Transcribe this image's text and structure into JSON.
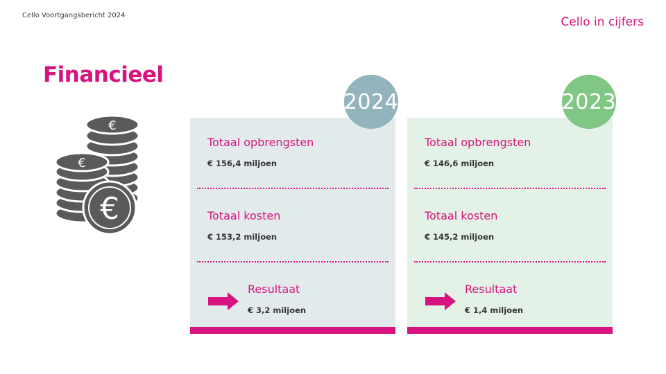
{
  "header": {
    "doc_label": "Cello Voortgangsbericht 2024",
    "section_label": "Cello in cijfers"
  },
  "page": {
    "title": "Financieel",
    "icon": "euro-coins-icon"
  },
  "colors": {
    "accent": "#d6137e",
    "badge_2024": "#93b4bd",
    "badge_2023": "#80c684",
    "card_2024": "#e2eaec",
    "card_2023": "#e3f1e6",
    "coin": "#5a5a5a"
  },
  "years": [
    {
      "year": "2024",
      "revenue_label": "Totaal opbrengsten",
      "revenue_value": "€ 156,4 miljoen",
      "costs_label": "Totaal kosten",
      "costs_value": "€ 153,2 miljoen",
      "result_label": "Resultaat",
      "result_value": "€ 3,2 miljoen"
    },
    {
      "year": "2023",
      "revenue_label": "Totaal opbrengsten",
      "revenue_value": "€ 146,6 miljoen",
      "costs_label": "Totaal kosten",
      "costs_value": "€ 145,2 miljoen",
      "result_label": "Resultaat",
      "result_value": "€ 1,4 miljoen"
    }
  ]
}
